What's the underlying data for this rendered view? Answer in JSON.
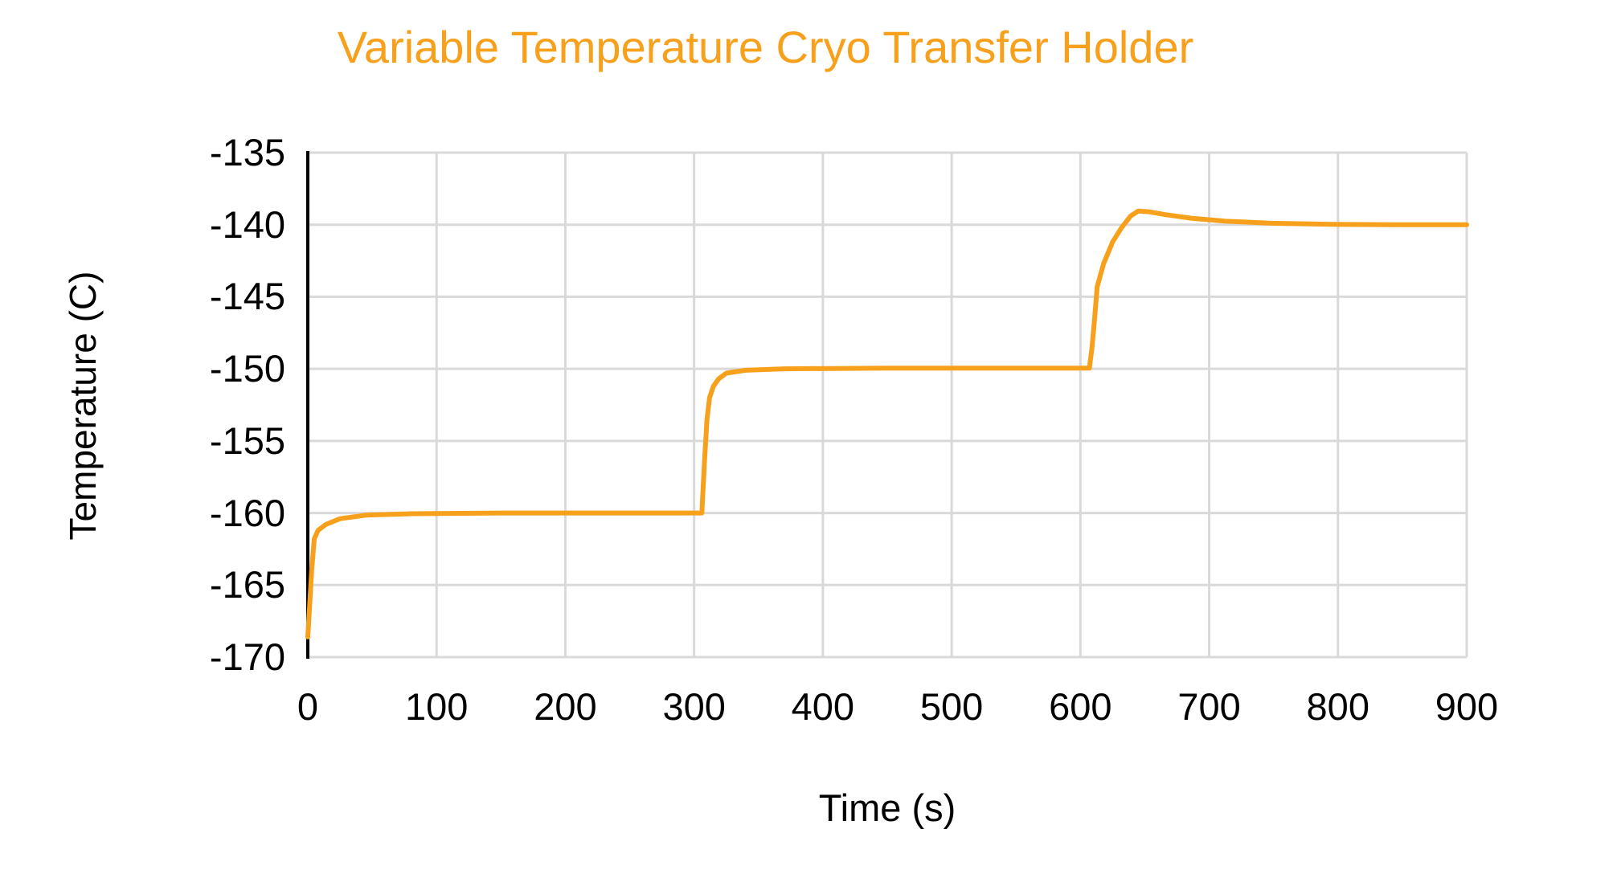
{
  "chart_data": {
    "type": "line",
    "title": "Variable Temperature Cryo Transfer Holder",
    "xlabel": "Time (s)",
    "ylabel": "Temperature (C)",
    "xlim": [
      0,
      900
    ],
    "ylim": [
      -170,
      -135
    ],
    "x_ticks": [
      0,
      100,
      200,
      300,
      400,
      500,
      600,
      700,
      800,
      900
    ],
    "y_ticks": [
      -135,
      -140,
      -145,
      -150,
      -155,
      -160,
      -165,
      -170
    ],
    "grid": true,
    "legend_position": "none",
    "series": [
      {
        "name": "Temperature",
        "color": "#F7A01C",
        "points": [
          [
            0,
            -168.6
          ],
          [
            3,
            -164.0
          ],
          [
            5,
            -161.8
          ],
          [
            8,
            -161.2
          ],
          [
            14,
            -160.8
          ],
          [
            25,
            -160.4
          ],
          [
            45,
            -160.15
          ],
          [
            80,
            -160.05
          ],
          [
            150,
            -160.0
          ],
          [
            230,
            -160.0
          ],
          [
            306,
            -160.0
          ],
          [
            308,
            -156.5
          ],
          [
            310,
            -153.5
          ],
          [
            312,
            -152.0
          ],
          [
            315,
            -151.2
          ],
          [
            319,
            -150.7
          ],
          [
            325,
            -150.3
          ],
          [
            340,
            -150.1
          ],
          [
            370,
            -150.0
          ],
          [
            450,
            -149.95
          ],
          [
            540,
            -149.95
          ],
          [
            607,
            -149.95
          ],
          [
            609,
            -148.5
          ],
          [
            611,
            -146.5
          ],
          [
            613,
            -144.3
          ],
          [
            618,
            -142.7
          ],
          [
            625,
            -141.2
          ],
          [
            632,
            -140.2
          ],
          [
            639,
            -139.4
          ],
          [
            645,
            -139.05
          ],
          [
            653,
            -139.1
          ],
          [
            666,
            -139.3
          ],
          [
            686,
            -139.55
          ],
          [
            712,
            -139.75
          ],
          [
            748,
            -139.9
          ],
          [
            795,
            -139.97
          ],
          [
            845,
            -140.0
          ],
          [
            900,
            -140.0
          ]
        ]
      }
    ]
  },
  "colors": {
    "line": "#F7A01C",
    "title": "#F7A01C",
    "grid": "#D9D9D9",
    "axis": "#000000",
    "text": "#000000",
    "background": "#FFFFFF"
  }
}
